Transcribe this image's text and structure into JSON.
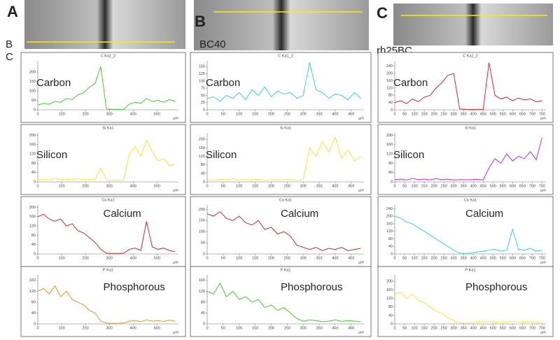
{
  "labels": {
    "panels": [
      "A",
      "B",
      "C"
    ],
    "row_labels": [
      "B",
      "C"
    ],
    "samples": [
      "BC40",
      "rh25BC"
    ]
  },
  "chart_data": [
    {
      "type": "line",
      "title": "C Ka1_2",
      "annotation": "Carbon",
      "x_label": "µm",
      "color": "#3fcf2f",
      "x": [
        0,
        24,
        48,
        72,
        96,
        120,
        144,
        168,
        192,
        216,
        240,
        264,
        288,
        312,
        336,
        360,
        384,
        408,
        432,
        456,
        480,
        504,
        528,
        552,
        576
      ],
      "values": [
        25,
        35,
        30,
        45,
        40,
        60,
        55,
        80,
        90,
        120,
        140,
        230,
        5,
        3,
        2,
        3,
        30,
        40,
        35,
        60,
        45,
        50,
        40,
        55,
        45
      ],
      "xlim": [
        0,
        590
      ],
      "ylim": [
        0,
        260
      ],
      "xticks": [
        0,
        100,
        200,
        300,
        400,
        500
      ],
      "yticks": [
        0,
        50,
        100,
        150,
        200
      ]
    },
    {
      "type": "line",
      "title": "Si Ka1",
      "annotation": "Silicon",
      "x_label": "µm",
      "color": "#f2ee2a",
      "x": [
        0,
        24,
        48,
        72,
        96,
        120,
        144,
        168,
        192,
        216,
        240,
        264,
        288,
        312,
        336,
        360,
        384,
        408,
        432,
        456,
        480,
        504,
        528,
        552,
        576
      ],
      "values": [
        10,
        12,
        8,
        15,
        10,
        12,
        9,
        14,
        10,
        12,
        11,
        60,
        8,
        6,
        7,
        8,
        120,
        150,
        110,
        180,
        130,
        90,
        100,
        70,
        75
      ],
      "xlim": [
        0,
        590
      ],
      "ylim": [
        0,
        210
      ],
      "xticks": [
        0,
        100,
        200,
        300,
        400,
        500
      ],
      "yticks": [
        0,
        40,
        80,
        120,
        160,
        200
      ]
    },
    {
      "type": "line",
      "title": "Ca Ka1",
      "annotation": "Calcium",
      "x_label": "µm",
      "color": "#d4282a",
      "x": [
        0,
        24,
        48,
        72,
        96,
        120,
        144,
        168,
        192,
        216,
        240,
        264,
        288,
        312,
        336,
        360,
        384,
        408,
        432,
        456,
        480,
        504,
        528,
        552,
        576
      ],
      "values": [
        160,
        170,
        150,
        140,
        150,
        120,
        130,
        100,
        90,
        70,
        50,
        20,
        3,
        2,
        2,
        3,
        20,
        25,
        15,
        140,
        30,
        20,
        25,
        15,
        10
      ],
      "xlim": [
        0,
        590
      ],
      "ylim": [
        0,
        210
      ],
      "xticks": [
        0,
        100,
        200,
        300,
        400,
        500
      ],
      "yticks": [
        0,
        40,
        80,
        120,
        160,
        200
      ]
    },
    {
      "type": "line",
      "title": "P Ka1",
      "annotation": "Phosphorous",
      "x_label": "µm",
      "color": "#f0922a",
      "x": [
        0,
        24,
        48,
        72,
        96,
        120,
        144,
        168,
        192,
        216,
        240,
        264,
        288,
        312,
        336,
        360,
        384,
        408,
        432,
        456,
        480,
        504,
        528,
        552,
        576
      ],
      "values": [
        120,
        130,
        110,
        140,
        100,
        120,
        90,
        80,
        70,
        50,
        40,
        10,
        3,
        2,
        2,
        3,
        10,
        12,
        8,
        15,
        10,
        12,
        9,
        14,
        10
      ],
      "xlim": [
        0,
        590
      ],
      "ylim": [
        0,
        180
      ],
      "xticks": [
        0,
        100,
        200,
        300,
        400,
        500
      ],
      "yticks": [
        0,
        40,
        80,
        120,
        160
      ]
    },
    {
      "type": "line",
      "title": "C Ka1_2",
      "annotation": "Carbon",
      "x_label": "µm",
      "color": "#2fd8e8",
      "x": [
        0,
        20,
        40,
        60,
        80,
        100,
        120,
        140,
        160,
        180,
        200,
        220,
        240,
        260,
        280,
        300,
        320,
        340,
        360,
        380,
        400,
        420,
        440,
        460,
        480
      ],
      "values": [
        40,
        45,
        30,
        50,
        40,
        60,
        35,
        70,
        50,
        80,
        45,
        65,
        55,
        60,
        40,
        50,
        165,
        70,
        60,
        40,
        55,
        50,
        35,
        60,
        40
      ],
      "xlim": [
        0,
        490
      ],
      "ylim": [
        0,
        170
      ],
      "xticks": [
        0,
        50,
        100,
        150,
        200,
        250,
        300,
        350,
        400,
        450
      ],
      "yticks": [
        0,
        25,
        50,
        75,
        100,
        125,
        150
      ]
    },
    {
      "type": "line",
      "title": "Si Ka1",
      "annotation": "Silicon",
      "x_label": "µm",
      "color": "#f2ee2a",
      "x": [
        0,
        20,
        40,
        60,
        80,
        100,
        120,
        140,
        160,
        180,
        200,
        220,
        240,
        260,
        280,
        300,
        320,
        340,
        360,
        380,
        400,
        420,
        440,
        460,
        480
      ],
      "values": [
        10,
        8,
        12,
        10,
        15,
        9,
        11,
        10,
        12,
        8,
        10,
        9,
        10,
        11,
        8,
        10,
        160,
        120,
        190,
        140,
        210,
        110,
        150,
        100,
        120
      ],
      "xlim": [
        0,
        490
      ],
      "ylim": [
        0,
        230
      ],
      "xticks": [
        0,
        50,
        100,
        150,
        200,
        250,
        300,
        350,
        400,
        450
      ],
      "yticks": [
        0,
        40,
        80,
        120,
        160,
        200
      ]
    },
    {
      "type": "line",
      "title": "Ca Ka1",
      "annotation": "Calcium",
      "x_label": "µm",
      "color": "#d4282a",
      "x": [
        0,
        20,
        40,
        60,
        80,
        100,
        120,
        140,
        160,
        180,
        200,
        220,
        240,
        260,
        280,
        300,
        320,
        340,
        360,
        380,
        400,
        420,
        440,
        460,
        480
      ],
      "values": [
        180,
        170,
        190,
        160,
        150,
        170,
        140,
        130,
        150,
        110,
        120,
        90,
        100,
        80,
        40,
        30,
        20,
        30,
        15,
        25,
        20,
        30,
        15,
        20,
        25
      ],
      "xlim": [
        0,
        490
      ],
      "ylim": [
        0,
        220
      ],
      "xticks": [
        0,
        50,
        100,
        150,
        200,
        250,
        300,
        350,
        400,
        450
      ],
      "yticks": [
        0,
        50,
        100,
        150,
        200
      ]
    },
    {
      "type": "line",
      "title": "P Ka1",
      "annotation": "Phosphorous",
      "x_label": "µm",
      "color": "#3fcf2f",
      "x": [
        0,
        20,
        40,
        60,
        80,
        100,
        120,
        140,
        160,
        180,
        200,
        220,
        240,
        260,
        280,
        300,
        320,
        340,
        360,
        380,
        400,
        420,
        440,
        460,
        480
      ],
      "values": [
        120,
        110,
        150,
        100,
        120,
        90,
        100,
        80,
        90,
        60,
        70,
        50,
        60,
        40,
        20,
        10,
        15,
        12,
        8,
        10,
        15,
        9,
        12,
        10,
        8
      ],
      "xlim": [
        0,
        490
      ],
      "ylim": [
        0,
        180
      ],
      "xticks": [
        0,
        50,
        100,
        150,
        200,
        250,
        300,
        350,
        400,
        450
      ],
      "yticks": [
        0,
        40,
        80,
        120,
        160
      ]
    },
    {
      "type": "line",
      "title": "C Ka1_2",
      "annotation": "Carbon",
      "x_label": "µm",
      "color": "#d4282a",
      "x": [
        0,
        30,
        60,
        90,
        120,
        150,
        180,
        210,
        240,
        270,
        300,
        330,
        360,
        390,
        420,
        450,
        480,
        510,
        540,
        570,
        600,
        630,
        660,
        690,
        720,
        750
      ],
      "values": [
        40,
        50,
        35,
        60,
        45,
        70,
        80,
        120,
        150,
        190,
        200,
        5,
        3,
        2,
        3,
        2,
        260,
        80,
        60,
        70,
        50,
        65,
        55,
        60,
        45,
        50
      ],
      "xlim": [
        0,
        770
      ],
      "ylim": [
        0,
        270
      ],
      "xticks": [
        0,
        50,
        100,
        150,
        200,
        250,
        300,
        350,
        400,
        450,
        500,
        550,
        600,
        650,
        700,
        750
      ],
      "yticks": [
        0,
        40,
        80,
        120,
        160,
        200,
        240
      ]
    },
    {
      "type": "line",
      "title": "Si Ka1",
      "annotation": "Silicon",
      "x_label": "µm",
      "color": "#d42ad4",
      "x": [
        0,
        30,
        60,
        90,
        120,
        150,
        180,
        210,
        240,
        270,
        300,
        330,
        360,
        390,
        420,
        450,
        480,
        510,
        540,
        570,
        600,
        630,
        660,
        690,
        720,
        750
      ],
      "values": [
        10,
        12,
        8,
        15,
        10,
        12,
        9,
        14,
        10,
        12,
        8,
        10,
        9,
        10,
        11,
        8,
        60,
        100,
        80,
        120,
        90,
        110,
        100,
        130,
        95,
        190
      ],
      "xlim": [
        0,
        770
      ],
      "ylim": [
        0,
        210
      ],
      "xticks": [
        0,
        50,
        100,
        150,
        200,
        250,
        300,
        350,
        400,
        450,
        500,
        550,
        600,
        650,
        700,
        750
      ],
      "yticks": [
        0,
        40,
        80,
        120,
        160,
        200
      ]
    },
    {
      "type": "line",
      "title": "Ca Ka1",
      "annotation": "Calcium",
      "x_label": "µm",
      "color": "#2fd8e8",
      "x": [
        0,
        30,
        60,
        90,
        120,
        150,
        180,
        210,
        240,
        270,
        300,
        330,
        360,
        390,
        420,
        450,
        480,
        510,
        540,
        570,
        600,
        630,
        660,
        690,
        720,
        750
      ],
      "values": [
        200,
        190,
        170,
        160,
        140,
        120,
        100,
        80,
        60,
        40,
        20,
        5,
        3,
        5,
        10,
        15,
        20,
        25,
        15,
        20,
        130,
        25,
        20,
        30,
        15,
        20
      ],
      "xlim": [
        0,
        770
      ],
      "ylim": [
        0,
        260
      ],
      "xticks": [
        0,
        50,
        100,
        150,
        200,
        250,
        300,
        350,
        400,
        450,
        500,
        550,
        600,
        650,
        700,
        750
      ],
      "yticks": [
        0,
        40,
        80,
        120,
        160,
        200,
        240
      ]
    },
    {
      "type": "line",
      "title": "P Ka1",
      "annotation": "Phosphorous",
      "x_label": "µm",
      "color": "#f2ee2a",
      "x": [
        0,
        30,
        60,
        90,
        120,
        150,
        180,
        210,
        240,
        270,
        300,
        330,
        360,
        390,
        420,
        450,
        480,
        510,
        540,
        570,
        600,
        630,
        660,
        690,
        720,
        750
      ],
      "values": [
        140,
        150,
        120,
        140,
        110,
        100,
        80,
        60,
        50,
        30,
        15,
        5,
        3,
        5,
        8,
        10,
        12,
        8,
        10,
        9,
        12,
        10,
        8,
        11,
        9,
        10
      ],
      "xlim": [
        0,
        770
      ],
      "ylim": [
        0,
        230
      ],
      "xticks": [
        0,
        50,
        100,
        150,
        200,
        250,
        300,
        350,
        400,
        450,
        500,
        550,
        600,
        650,
        700,
        750
      ],
      "yticks": [
        0,
        40,
        80,
        120,
        160,
        200
      ]
    }
  ]
}
